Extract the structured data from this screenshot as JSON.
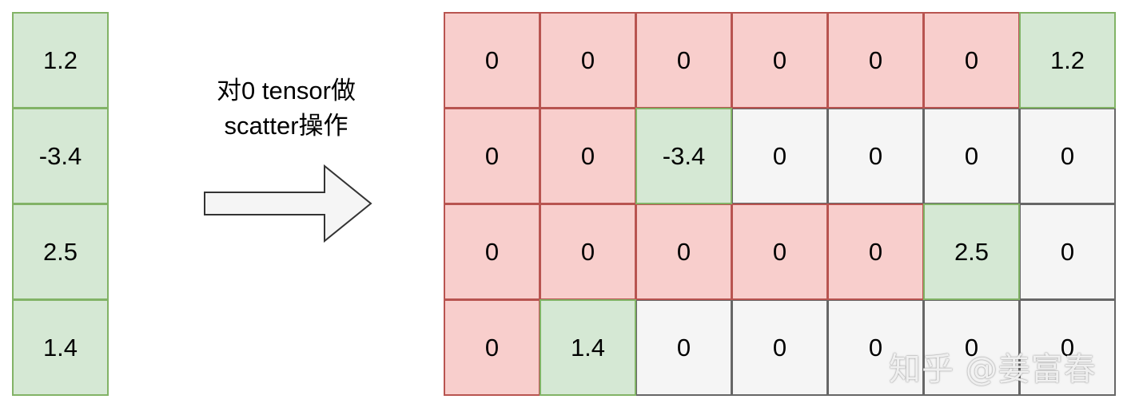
{
  "source_vector": {
    "values": [
      "1.2",
      "-3.4",
      "2.5",
      "1.4"
    ]
  },
  "operation": {
    "line1": "对0 tensor做",
    "line2": "scatter操作"
  },
  "result_matrix": {
    "rows": [
      [
        {
          "value": "0",
          "state": "red"
        },
        {
          "value": "0",
          "state": "red"
        },
        {
          "value": "0",
          "state": "red"
        },
        {
          "value": "0",
          "state": "red"
        },
        {
          "value": "0",
          "state": "red"
        },
        {
          "value": "0",
          "state": "red"
        },
        {
          "value": "1.2",
          "state": "green"
        }
      ],
      [
        {
          "value": "0",
          "state": "red"
        },
        {
          "value": "0",
          "state": "red"
        },
        {
          "value": "-3.4",
          "state": "green"
        },
        {
          "value": "0",
          "state": "gray"
        },
        {
          "value": "0",
          "state": "gray"
        },
        {
          "value": "0",
          "state": "gray"
        },
        {
          "value": "0",
          "state": "gray"
        }
      ],
      [
        {
          "value": "0",
          "state": "red"
        },
        {
          "value": "0",
          "state": "red"
        },
        {
          "value": "0",
          "state": "red"
        },
        {
          "value": "0",
          "state": "red"
        },
        {
          "value": "0",
          "state": "red"
        },
        {
          "value": "2.5",
          "state": "green"
        },
        {
          "value": "0",
          "state": "gray"
        }
      ],
      [
        {
          "value": "0",
          "state": "red"
        },
        {
          "value": "1.4",
          "state": "green"
        },
        {
          "value": "0",
          "state": "gray"
        },
        {
          "value": "0",
          "state": "gray"
        },
        {
          "value": "0",
          "state": "gray"
        },
        {
          "value": "0",
          "state": "gray"
        },
        {
          "value": "0",
          "state": "gray"
        }
      ]
    ]
  },
  "colors": {
    "green_fill": "#d5e8d4",
    "green_border": "#82b366",
    "red_fill": "#f8cecc",
    "red_border": "#b85450",
    "gray_fill": "#f5f5f5",
    "gray_border": "#666666",
    "arrow_fill": "#f5f5f5",
    "arrow_border": "#333333"
  },
  "watermark": {
    "text": "知乎 @姜富春"
  }
}
